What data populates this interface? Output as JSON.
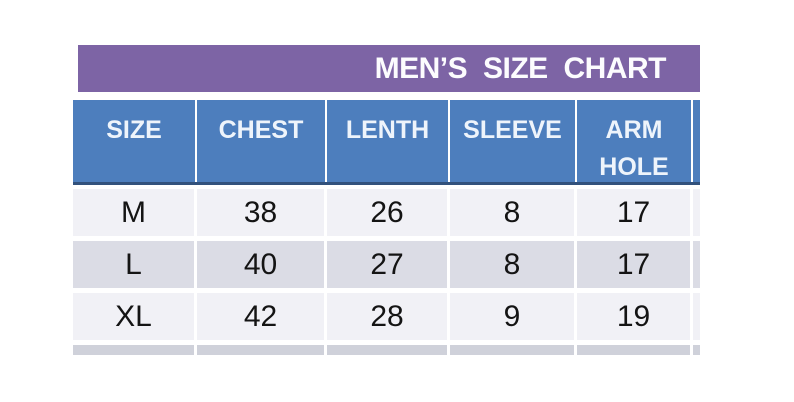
{
  "title": "MEN’S SIZE CHART",
  "table": {
    "columns": [
      "SIZE",
      "CHEST",
      "LENTH",
      "SLEEVE",
      "ARM HOLE"
    ],
    "rows": [
      [
        "M",
        "38",
        "26",
        "8",
        "17"
      ],
      [
        "L",
        "40",
        "27",
        "8",
        "17"
      ],
      [
        "XL",
        "42",
        "28",
        "9",
        "19"
      ]
    ]
  },
  "colors": {
    "title_bar": "#7d64a5",
    "header_bg": "#4d7ebd",
    "header_bottom_border": "#32517c",
    "header_text": "#eef4fb",
    "row_light": "#f1f1f6",
    "row_alt": "#dbdce5",
    "partial_row": "#cfd1da",
    "cell_text": "#141414",
    "page_bg": "#ffffff"
  }
}
